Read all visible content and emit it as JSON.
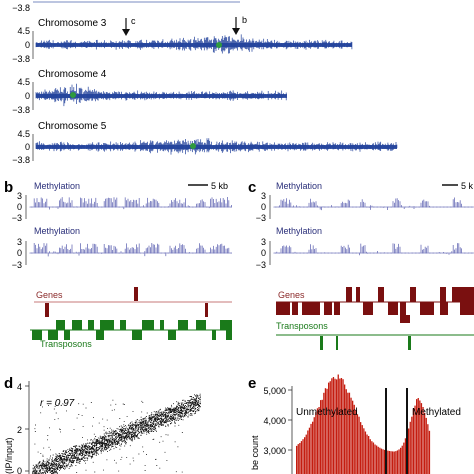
{
  "colors": {
    "chromosome": "#1f3f9a",
    "methylation": "#6b6fb8",
    "genes": "#7a1010",
    "genes_label": "#8b2a2a",
    "transposons": "#1a7a1a",
    "centromere": "#2e9a3e",
    "histogram": "#c41d10",
    "scatter": "#111111"
  },
  "panel_a": {
    "top_tick": "−3.8",
    "chromosomes": [
      {
        "label": "Chromosome 3",
        "ticks": [
          "4.5",
          "0",
          "−3.8"
        ],
        "arrows": [
          {
            "label": "c"
          },
          {
            "label": "b"
          }
        ]
      },
      {
        "label": "Chromosome 4",
        "ticks": [
          "4.5",
          "0",
          "−3.8"
        ]
      },
      {
        "label": "Chromosome 5",
        "ticks": [
          "4.5",
          "0",
          "−3.8"
        ]
      }
    ]
  },
  "panel_b": {
    "letter": "b",
    "scale": "5 kb",
    "tracks": [
      {
        "label": "Methylation",
        "ticks": [
          "3",
          "0",
          "−3"
        ]
      },
      {
        "label": "Methylation",
        "ticks": [
          "3",
          "0",
          "−3"
        ]
      }
    ],
    "genes_label": "Genes",
    "transposons_label": "Transposons"
  },
  "panel_c": {
    "letter": "c",
    "scale": "5 k",
    "tracks": [
      {
        "label": "Methylation",
        "ticks": [
          "3",
          "0",
          "−3"
        ]
      },
      {
        "label": "Methylation",
        "ticks": [
          "3",
          "0",
          "−3"
        ]
      }
    ],
    "genes_label": "Genes",
    "transposons_label": "Transposons"
  },
  "panel_d": {
    "letter": "d",
    "r_label": "r = 0.97",
    "ylabel_fragment": "(IP/input)",
    "y_ticks": [
      "4",
      "2",
      "0"
    ]
  },
  "panel_e": {
    "letter": "e",
    "ylabel_fragment": "be count",
    "y_ticks": [
      "5,000",
      "4,000",
      "3,000"
    ],
    "left_label": "Unmethylated",
    "right_label": "Methylated"
  }
}
